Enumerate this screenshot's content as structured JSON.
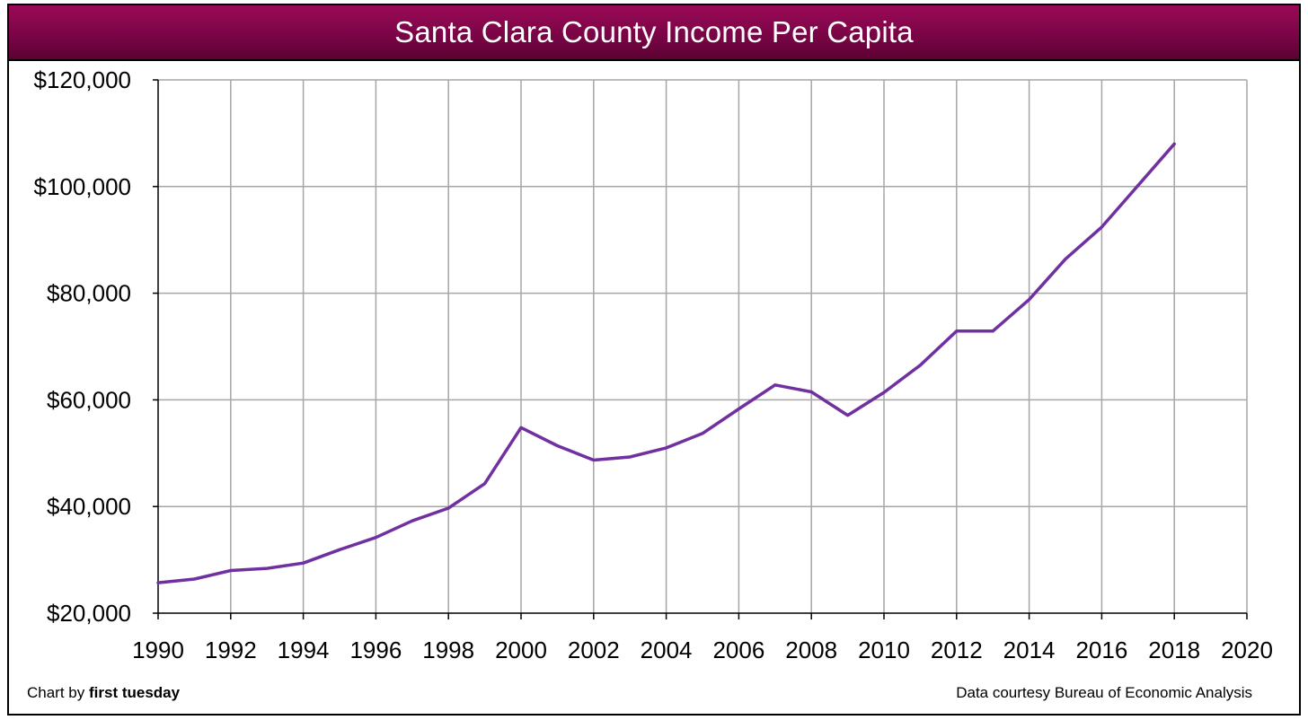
{
  "title": "Santa Clara County Income Per Capita",
  "footer": {
    "credit_prefix": "Chart by ",
    "credit_brand": "first tuesday",
    "source": "Data courtesy Bureau of Economic Analysis"
  },
  "colors": {
    "line": "#7030a0",
    "title_bar": "#800048",
    "grid": "#a6a6a6"
  },
  "chart_data": {
    "type": "line",
    "title": "Santa Clara County Income Per Capita",
    "xlabel": "",
    "ylabel": "",
    "xlim": [
      1990,
      2020
    ],
    "ylim": [
      20000,
      120000
    ],
    "x_ticks": [
      1990,
      1992,
      1994,
      1996,
      1998,
      2000,
      2002,
      2004,
      2006,
      2008,
      2010,
      2012,
      2014,
      2016,
      2018,
      2020
    ],
    "x_tick_labels": [
      "1990",
      "1992",
      "1994",
      "1996",
      "1998",
      "2000",
      "2002",
      "2004",
      "2006",
      "2008",
      "2010",
      "2012",
      "2014",
      "2016",
      "2018",
      "2020"
    ],
    "y_ticks": [
      20000,
      40000,
      60000,
      80000,
      100000,
      120000
    ],
    "y_tick_labels": [
      "$20,000",
      "$40,000",
      "$60,000",
      "$80,000",
      "$100,000",
      "$120,000"
    ],
    "grid": true,
    "series": [
      {
        "x": [
          1990,
          1991,
          1992,
          1993,
          1994,
          1995,
          1996,
          1997,
          1998,
          1999,
          2000,
          2001,
          2002,
          2003,
          2004,
          2005,
          2006,
          2007,
          2008,
          2009,
          2010,
          2011,
          2012,
          2013,
          2014,
          2015,
          2016,
          2017,
          2018
        ],
        "values": [
          25700,
          26400,
          28000,
          28400,
          29400,
          31900,
          34200,
          37300,
          39700,
          44300,
          54800,
          51400,
          48700,
          49300,
          51000,
          53700,
          58300,
          62800,
          61500,
          57100,
          61400,
          66500,
          72900,
          72900,
          78800,
          86400,
          92400,
          100200,
          108000
        ]
      }
    ]
  }
}
